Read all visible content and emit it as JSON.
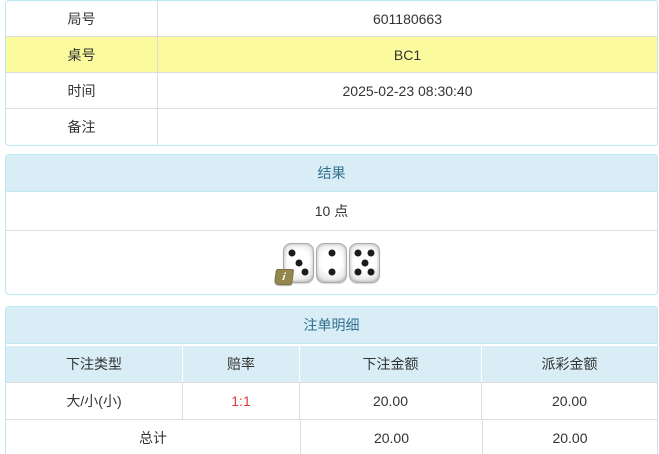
{
  "info_table": {
    "rows": [
      {
        "label": "局号",
        "value": "601180663",
        "highlight": false
      },
      {
        "label": "桌号",
        "value": "BC1",
        "highlight": true
      },
      {
        "label": "时间",
        "value": "2025-02-23 08:30:40",
        "highlight": false
      },
      {
        "label": "备注",
        "value": "",
        "highlight": false
      }
    ]
  },
  "result_panel": {
    "title": "结果",
    "points": "10 点",
    "dice": [
      3,
      2,
      5
    ],
    "info_icon": "i"
  },
  "bets_panel": {
    "title": "注单明细",
    "columns": [
      "下注类型",
      "赔率",
      "下注金额",
      "派彩金额"
    ],
    "rows": [
      {
        "type": "大/小(小)",
        "odds": "1:1",
        "bet": "20.00",
        "payout": "20.00"
      }
    ],
    "total": {
      "label": "总计",
      "bet": "20.00",
      "payout": "20.00"
    }
  },
  "colors": {
    "panel_border": "#bce8f1",
    "panel_heading_bg": "#d9edf7",
    "panel_heading_text": "#31708f",
    "highlight_row_bg": "#fbfb9d",
    "odds_red": "#e4393c",
    "inner_border": "#dddddd"
  }
}
